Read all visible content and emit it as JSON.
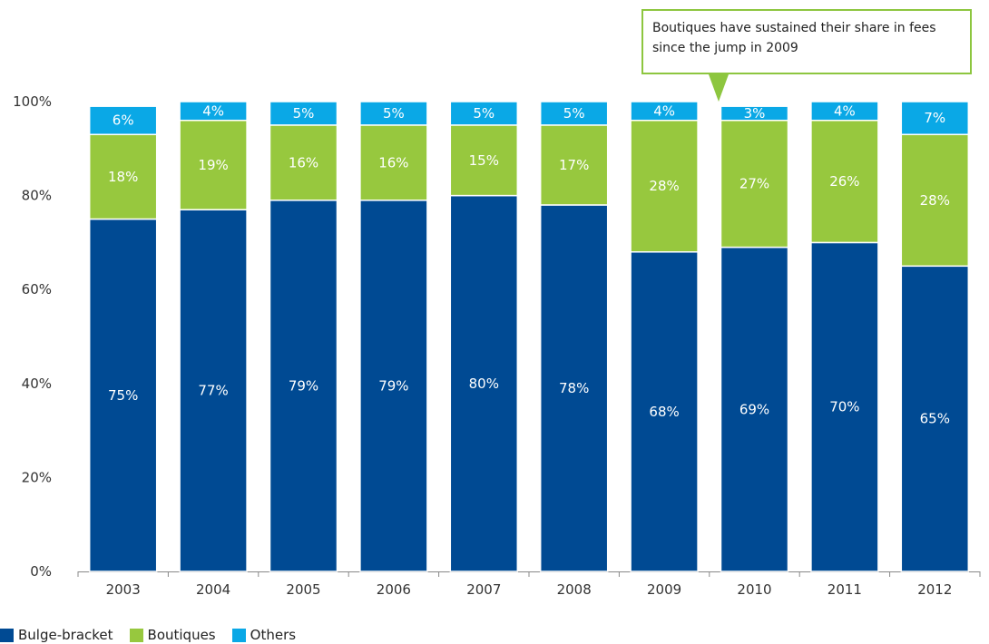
{
  "chart_data": {
    "type": "bar",
    "stacked": true,
    "categories": [
      "2003",
      "2004",
      "2005",
      "2006",
      "2007",
      "2008",
      "2009",
      "2010",
      "2011",
      "2012"
    ],
    "series": [
      {
        "name": "Bulge-bracket",
        "color": "#004a93",
        "values": [
          75,
          77,
          79,
          79,
          80,
          78,
          68,
          69,
          70,
          65
        ]
      },
      {
        "name": "Boutiques",
        "color": "#97c83e",
        "values": [
          18,
          19,
          16,
          16,
          15,
          17,
          28,
          27,
          26,
          28
        ]
      },
      {
        "name": "Others",
        "color": "#0aa8e6",
        "values": [
          6,
          4,
          5,
          5,
          5,
          5,
          4,
          3,
          4,
          7
        ]
      }
    ],
    "yticks": [
      "0%",
      "20%",
      "40%",
      "60%",
      "80%",
      "100%"
    ],
    "ylim": [
      0,
      100
    ],
    "grid": false,
    "legend_position": "bottom-left",
    "annotation": {
      "text": "Boutiques have sustained their share in fees since the jump in 2009",
      "border_color": "#8dc63f"
    }
  }
}
